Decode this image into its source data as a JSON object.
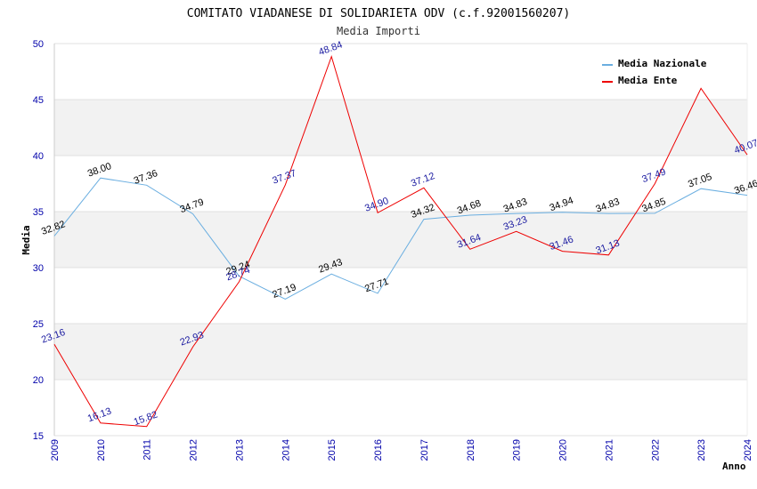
{
  "chart_data": {
    "type": "line",
    "title": "COMITATO VIADANESE DI SOLIDARIETA ODV (c.f.92001560207)",
    "subtitle": "Media Importi",
    "xlabel": "Anno",
    "ylabel": "Media",
    "ylim": [
      15,
      50
    ],
    "yticks": [
      15,
      20,
      25,
      30,
      35,
      40,
      45,
      50
    ],
    "categories": [
      "2009",
      "2010",
      "2011",
      "2012",
      "2013",
      "2014",
      "2015",
      "2016",
      "2017",
      "2018",
      "2019",
      "2020",
      "2021",
      "2022",
      "2023",
      "2024"
    ],
    "grid": "horizontal bands",
    "legend_position": "top-right",
    "series": [
      {
        "name": "Media Nazionale",
        "color": "#6aaee0",
        "label_color": "#000000",
        "values": [
          32.82,
          38.0,
          37.36,
          34.79,
          29.24,
          27.19,
          29.43,
          27.71,
          34.32,
          34.68,
          34.83,
          34.94,
          34.83,
          34.85,
          37.05,
          36.46
        ],
        "labels": [
          "32.82",
          "38.00",
          "37.36",
          "34.79",
          "29.24",
          "27.19",
          "29.43",
          "27.71",
          "34.32",
          "34.68",
          "34.83",
          "34.94",
          "34.83",
          "34.85",
          "37.05",
          "36.46"
        ]
      },
      {
        "name": "Media Ente",
        "color": "#ee0000",
        "label_color": "#1a1aa0",
        "values": [
          23.16,
          16.13,
          15.82,
          22.93,
          28.74,
          37.37,
          48.84,
          34.9,
          37.12,
          31.64,
          33.23,
          31.46,
          31.13,
          37.49,
          46.0,
          40.07
        ],
        "labels": [
          "23.16",
          "16.13",
          "15.82",
          "22.93",
          "28.74",
          "37.37",
          "48.84",
          "34.90",
          "37.12",
          "31.64",
          "33.23",
          "31.46",
          "31.13",
          "37.49",
          "",
          "40.07"
        ]
      }
    ]
  }
}
